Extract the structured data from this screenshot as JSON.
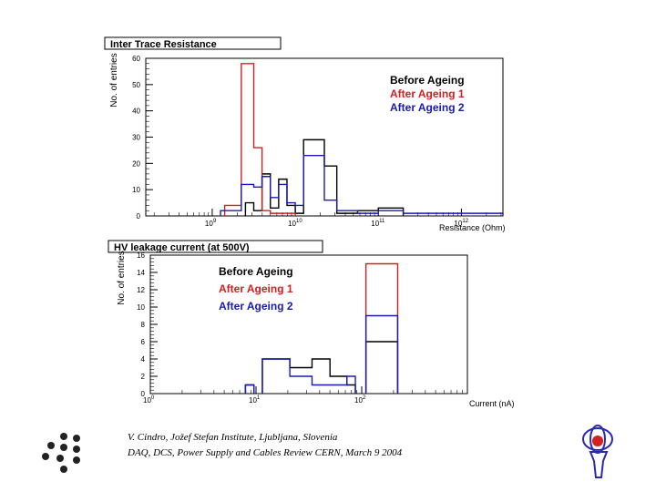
{
  "chart_data": [
    {
      "type": "histogram",
      "title": "Inter Trace Resistance",
      "xlabel": "Resistance (Ohm)",
      "ylabel": "No. of entries",
      "xscale": "log",
      "xlim_exp": [
        8.2,
        12.5
      ],
      "ylim": [
        0,
        60
      ],
      "yticks": [
        0,
        10,
        20,
        30,
        40,
        50,
        60
      ],
      "xticks": [
        {
          "exp": 9,
          "label": "10",
          "sup": "9"
        },
        {
          "exp": 10,
          "label": "10",
          "sup": "10"
        },
        {
          "exp": 11,
          "label": "10",
          "sup": "11"
        },
        {
          "exp": 12,
          "label": "10",
          "sup": "12"
        }
      ],
      "legend": [
        "Before Ageing",
        "After Ageing 1",
        "After Ageing 2"
      ],
      "legend_position": "top-right",
      "series": [
        {
          "name": "Before Ageing",
          "color": "#000000",
          "bins": [
            [
              9.4,
              9.5,
              5
            ],
            [
              9.5,
              9.6,
              2
            ],
            [
              9.6,
              9.7,
              16
            ],
            [
              9.7,
              9.8,
              3
            ],
            [
              9.8,
              9.9,
              14
            ],
            [
              9.9,
              10.0,
              4
            ],
            [
              10.0,
              10.1,
              1
            ],
            [
              10.1,
              10.35,
              29
            ],
            [
              10.35,
              10.5,
              19
            ],
            [
              10.5,
              10.75,
              1
            ],
            [
              10.75,
              11.0,
              2
            ],
            [
              11.0,
              11.3,
              3
            ]
          ]
        },
        {
          "name": "After Ageing 1",
          "color": "#d32020",
          "bins": [
            [
              9.15,
              9.35,
              4
            ],
            [
              9.35,
              9.5,
              58
            ],
            [
              9.5,
              9.6,
              26
            ],
            [
              9.6,
              9.7,
              2
            ],
            [
              9.7,
              10.0,
              1
            ]
          ]
        },
        {
          "name": "After Ageing 2",
          "color": "#1a1ab8",
          "bins": [
            [
              9.1,
              9.35,
              2
            ],
            [
              9.35,
              9.5,
              12
            ],
            [
              9.5,
              9.6,
              11
            ],
            [
              9.6,
              9.7,
              15
            ],
            [
              9.7,
              9.8,
              7
            ],
            [
              9.8,
              9.9,
              12
            ],
            [
              9.9,
              10.0,
              5
            ],
            [
              10.0,
              10.1,
              4
            ],
            [
              10.1,
              10.35,
              23
            ],
            [
              10.35,
              10.5,
              6
            ],
            [
              10.5,
              10.75,
              2
            ],
            [
              10.75,
              11.0,
              1
            ],
            [
              11.0,
              11.3,
              2
            ],
            [
              11.3,
              11.6,
              1
            ],
            [
              11.6,
              12.5,
              1
            ]
          ]
        }
      ]
    },
    {
      "type": "histogram",
      "title": "HV leakage current (at 500V)",
      "xlabel": "Current (nA)",
      "ylabel": "No. of entries",
      "xscale": "log",
      "xlim_exp": [
        0,
        3
      ],
      "ylim": [
        0,
        16
      ],
      "yticks": [
        0,
        2,
        4,
        6,
        8,
        10,
        12,
        14,
        16
      ],
      "xticks": [
        {
          "exp": 0,
          "label": "10",
          "sup": "0"
        },
        {
          "exp": 1,
          "label": "10",
          "sup": "1"
        },
        {
          "exp": 2,
          "label": "10",
          "sup": "2"
        }
      ],
      "legend": [
        "Before Ageing",
        "After Ageing 1",
        "After Ageing 2"
      ],
      "legend_position": "top-left",
      "series": [
        {
          "name": "Before Ageing",
          "color": "#000000",
          "bins": [
            [
              0.9,
              0.98,
              1
            ],
            [
              1.06,
              1.32,
              4
            ],
            [
              1.32,
              1.53,
              3
            ],
            [
              1.53,
              1.7,
              4
            ],
            [
              1.7,
              1.86,
              2
            ],
            [
              1.86,
              1.94,
              1
            ],
            [
              2.04,
              2.34,
              6
            ]
          ]
        },
        {
          "name": "After Ageing 1",
          "color": "#d32020",
          "bins": [
            [
              2.04,
              2.34,
              15
            ]
          ]
        },
        {
          "name": "After Ageing 2",
          "color": "#1a1ab8",
          "bins": [
            [
              0.9,
              0.98,
              1
            ],
            [
              1.06,
              1.32,
              4
            ],
            [
              1.32,
              1.53,
              2
            ],
            [
              1.53,
              1.7,
              1
            ],
            [
              1.7,
              1.86,
              1
            ],
            [
              1.86,
              1.94,
              2
            ],
            [
              2.04,
              2.34,
              9
            ]
          ]
        }
      ]
    }
  ],
  "footer": {
    "line1": "V. Cindro,   Jožef Stefan Institute, Ljubljana, Slovenia",
    "line2": "DAQ, DCS, Power Supply and Cables Review CERN,  March 9 2004"
  },
  "logos": {
    "left": "dot-cluster-logo",
    "right": "atlas-logo"
  }
}
